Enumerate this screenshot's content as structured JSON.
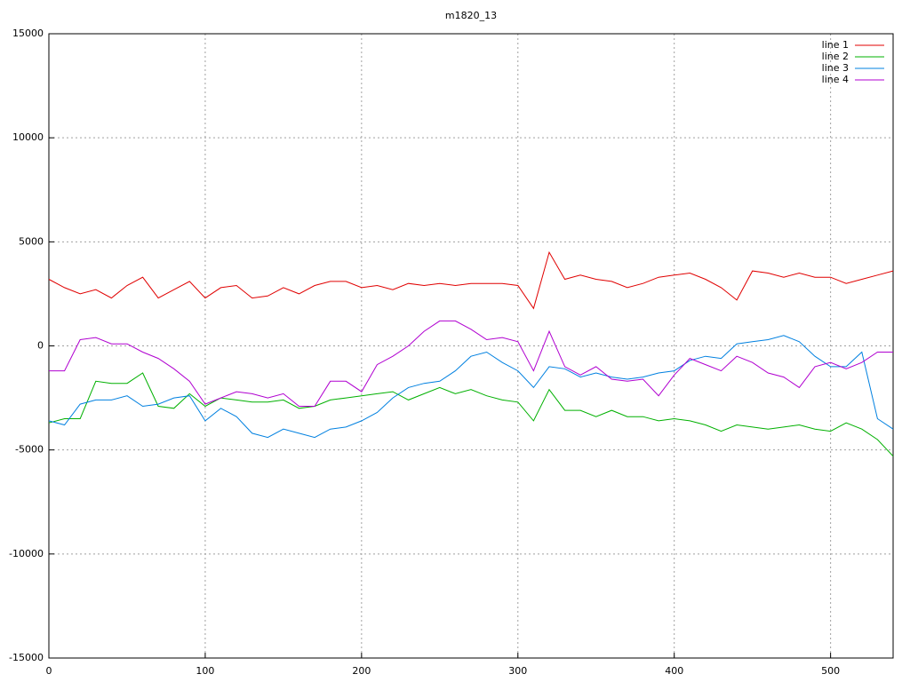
{
  "chart_data": {
    "type": "line",
    "title": "m1820_13",
    "x": [
      0,
      10,
      20,
      30,
      40,
      50,
      60,
      70,
      80,
      90,
      100,
      110,
      120,
      130,
      140,
      150,
      160,
      170,
      180,
      190,
      200,
      210,
      220,
      230,
      240,
      250,
      260,
      270,
      280,
      290,
      300,
      310,
      320,
      330,
      340,
      350,
      360,
      370,
      380,
      390,
      400,
      410,
      420,
      430,
      440,
      450,
      460,
      470,
      480,
      490,
      500,
      510,
      520,
      530,
      540
    ],
    "xlim": [
      0,
      540
    ],
    "xticks": [
      0,
      100,
      200,
      300,
      400,
      500
    ],
    "ylim": [
      -15000,
      15000
    ],
    "yticks": [
      -15000,
      -10000,
      -5000,
      0,
      5000,
      10000,
      15000
    ],
    "grid": true,
    "legend": "top-right",
    "series": [
      {
        "name": "line 1",
        "color": "#e00000",
        "values": [
          3200,
          2800,
          2500,
          2700,
          2300,
          2900,
          3300,
          2300,
          2700,
          3100,
          2300,
          2800,
          2900,
          2300,
          2400,
          2800,
          2500,
          2900,
          3100,
          3100,
          2800,
          2900,
          2700,
          3000,
          2900,
          3000,
          2900,
          3000,
          3000,
          3000,
          2900,
          1800,
          4500,
          3200,
          3400,
          3200,
          3100,
          2800,
          3000,
          3300,
          3400,
          3500,
          3200,
          2800,
          2200,
          3600,
          3500,
          3300,
          3500,
          3300,
          3300,
          3000,
          3200,
          3400,
          3600
        ]
      },
      {
        "name": "line 2",
        "color": "#00b000",
        "values": [
          -3700,
          -3500,
          -3500,
          -1700,
          -1800,
          -1800,
          -1300,
          -2900,
          -3000,
          -2300,
          -2900,
          -2500,
          -2600,
          -2700,
          -2700,
          -2600,
          -3000,
          -2900,
          -2600,
          -2500,
          -2400,
          -2300,
          -2200,
          -2600,
          -2300,
          -2000,
          -2300,
          -2100,
          -2400,
          -2600,
          -2700,
          -3600,
          -2100,
          -3100,
          -3100,
          -3400,
          -3100,
          -3400,
          -3400,
          -3600,
          -3500,
          -3600,
          -3800,
          -4100,
          -3800,
          -3900,
          -4000,
          -3900,
          -3800,
          -4000,
          -4100,
          -3700,
          -4000,
          -4500,
          -5300
        ]
      },
      {
        "name": "line 3",
        "color": "#0080e0",
        "values": [
          -3600,
          -3800,
          -2800,
          -2600,
          -2600,
          -2400,
          -2900,
          -2800,
          -2500,
          -2400,
          -3600,
          -3000,
          -3400,
          -4200,
          -4400,
          -4000,
          -4200,
          -4400,
          -4000,
          -3900,
          -3600,
          -3200,
          -2500,
          -2000,
          -1800,
          -1700,
          -1200,
          -500,
          -300,
          -800,
          -1200,
          -2000,
          -1000,
          -1100,
          -1500,
          -1300,
          -1500,
          -1600,
          -1500,
          -1300,
          -1200,
          -700,
          -500,
          -600,
          100,
          200,
          300,
          500,
          200,
          -500,
          -1000,
          -1000,
          -300,
          -3500,
          -4000
        ]
      },
      {
        "name": "line 4",
        "color": "#b000d0",
        "values": [
          -1200,
          -1200,
          300,
          400,
          100,
          100,
          -300,
          -600,
          -1100,
          -1700,
          -2800,
          -2500,
          -2200,
          -2300,
          -2500,
          -2300,
          -2900,
          -2900,
          -1700,
          -1700,
          -2200,
          -900,
          -500,
          0,
          700,
          1200,
          1200,
          800,
          300,
          400,
          200,
          -1200,
          700,
          -1000,
          -1400,
          -1000,
          -1600,
          -1700,
          -1600,
          -2400,
          -1400,
          -600,
          -900,
          -1200,
          -500,
          -800,
          -1300,
          -1500,
          -2000,
          -1000,
          -800,
          -1100,
          -800,
          -300,
          -300
        ]
      }
    ]
  }
}
